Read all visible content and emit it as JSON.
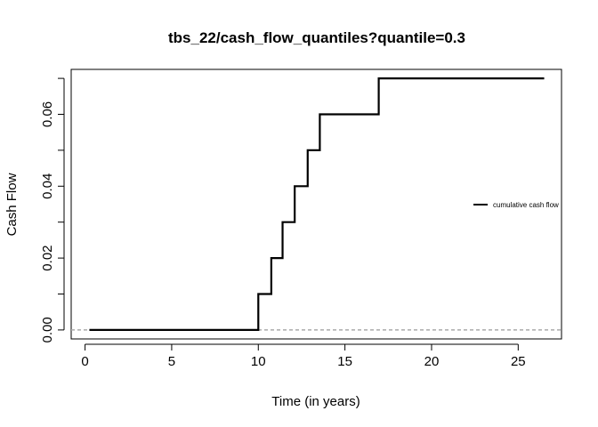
{
  "chart_data": {
    "type": "line",
    "title": "tbs_22/cash_flow_quantiles?quantile=0.3",
    "xlabel": "Time (in years)",
    "ylabel": "Cash Flow",
    "xlim": [
      -0.8,
      27.5
    ],
    "ylim": [
      -0.0025,
      0.0725
    ],
    "x_ticks": [
      0,
      5,
      10,
      15,
      20,
      25
    ],
    "x_tick_labels": [
      "0",
      "5",
      "10",
      "15",
      "20",
      "25"
    ],
    "y_ticks": [
      0,
      0.02,
      0.04,
      0.06
    ],
    "y_tick_labels": [
      "0.00",
      "0.02",
      "0.04",
      "0.06"
    ],
    "y_minor_ticks": [
      0.01,
      0.03,
      0.05,
      0.07
    ],
    "grid": false,
    "legend_position": "right",
    "reference_line": {
      "y": 0,
      "style": "dashed",
      "color": "#aaaaaa"
    },
    "series": [
      {
        "name": "cumulative cash flow",
        "color": "#000000",
        "step": true,
        "x": [
          0.25,
          10.0,
          10.75,
          11.4,
          12.1,
          12.85,
          13.55,
          14.75,
          16.95,
          26.5
        ],
        "y": [
          0.0,
          0.01,
          0.02,
          0.03,
          0.04,
          0.05,
          0.06,
          0.06,
          0.07,
          0.07
        ]
      }
    ]
  }
}
